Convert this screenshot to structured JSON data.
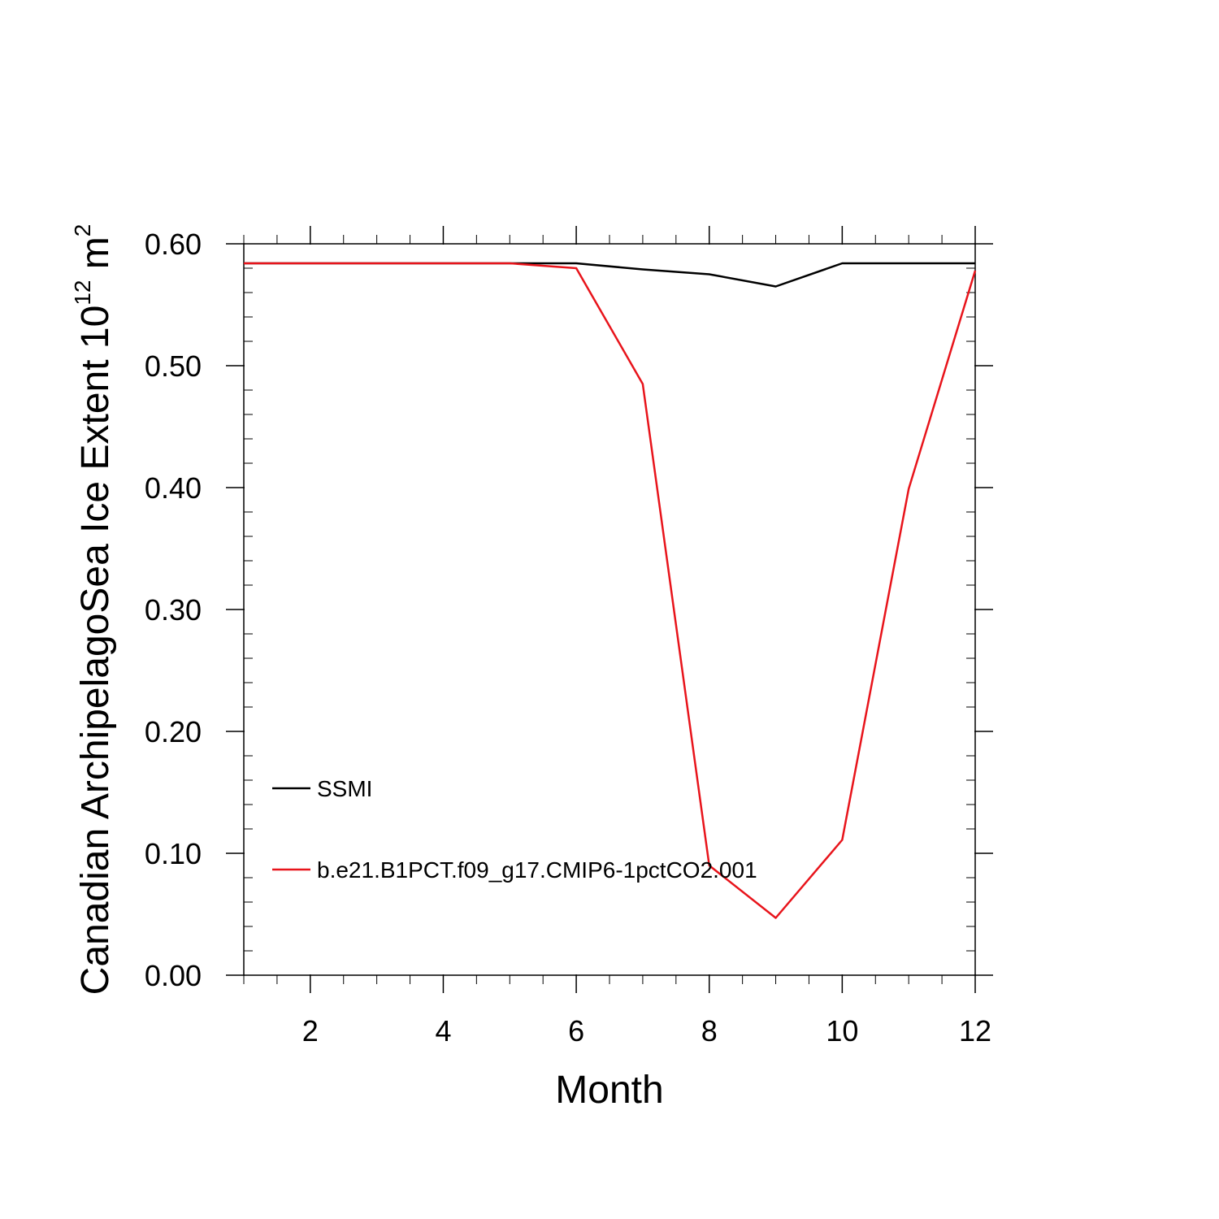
{
  "chart_data": {
    "type": "line",
    "title": "",
    "xlabel": "Month",
    "ylabel": "Canadian ArchipelagoSea Ice Extent 10",
    "ylabel_sup1": "12",
    "ylabel_mid": " m",
    "ylabel_sup2": "2",
    "xlim": [
      1,
      12
    ],
    "ylim": [
      0,
      0.6
    ],
    "x_ticks": [
      2,
      4,
      6,
      8,
      10,
      12
    ],
    "x_tick_labels": [
      "2",
      "4",
      "6",
      "8",
      "10",
      "12"
    ],
    "y_ticks": [
      0,
      0.1,
      0.2,
      0.3,
      0.4,
      0.5,
      0.6
    ],
    "y_tick_labels": [
      "0.00",
      "0.10",
      "0.20",
      "0.30",
      "0.40",
      "0.50",
      "0.60"
    ],
    "grid": false,
    "legend_position": "lower-left",
    "x": [
      1,
      2,
      3,
      4,
      5,
      6,
      7,
      8,
      9,
      10,
      11,
      12
    ],
    "series": [
      {
        "name": "SSMI",
        "color": "#000000",
        "values": [
          0.584,
          0.584,
          0.584,
          0.584,
          0.584,
          0.584,
          0.579,
          0.575,
          0.565,
          0.584,
          0.584,
          0.584
        ]
      },
      {
        "name": "b.e21.B1PCT.f09_g17.CMIP6-1pctCO2.001",
        "color": "#e8141b",
        "values": [
          0.584,
          0.584,
          0.584,
          0.584,
          0.584,
          0.58,
          0.485,
          0.09,
          0.047,
          0.111,
          0.399,
          0.578
        ]
      }
    ]
  }
}
